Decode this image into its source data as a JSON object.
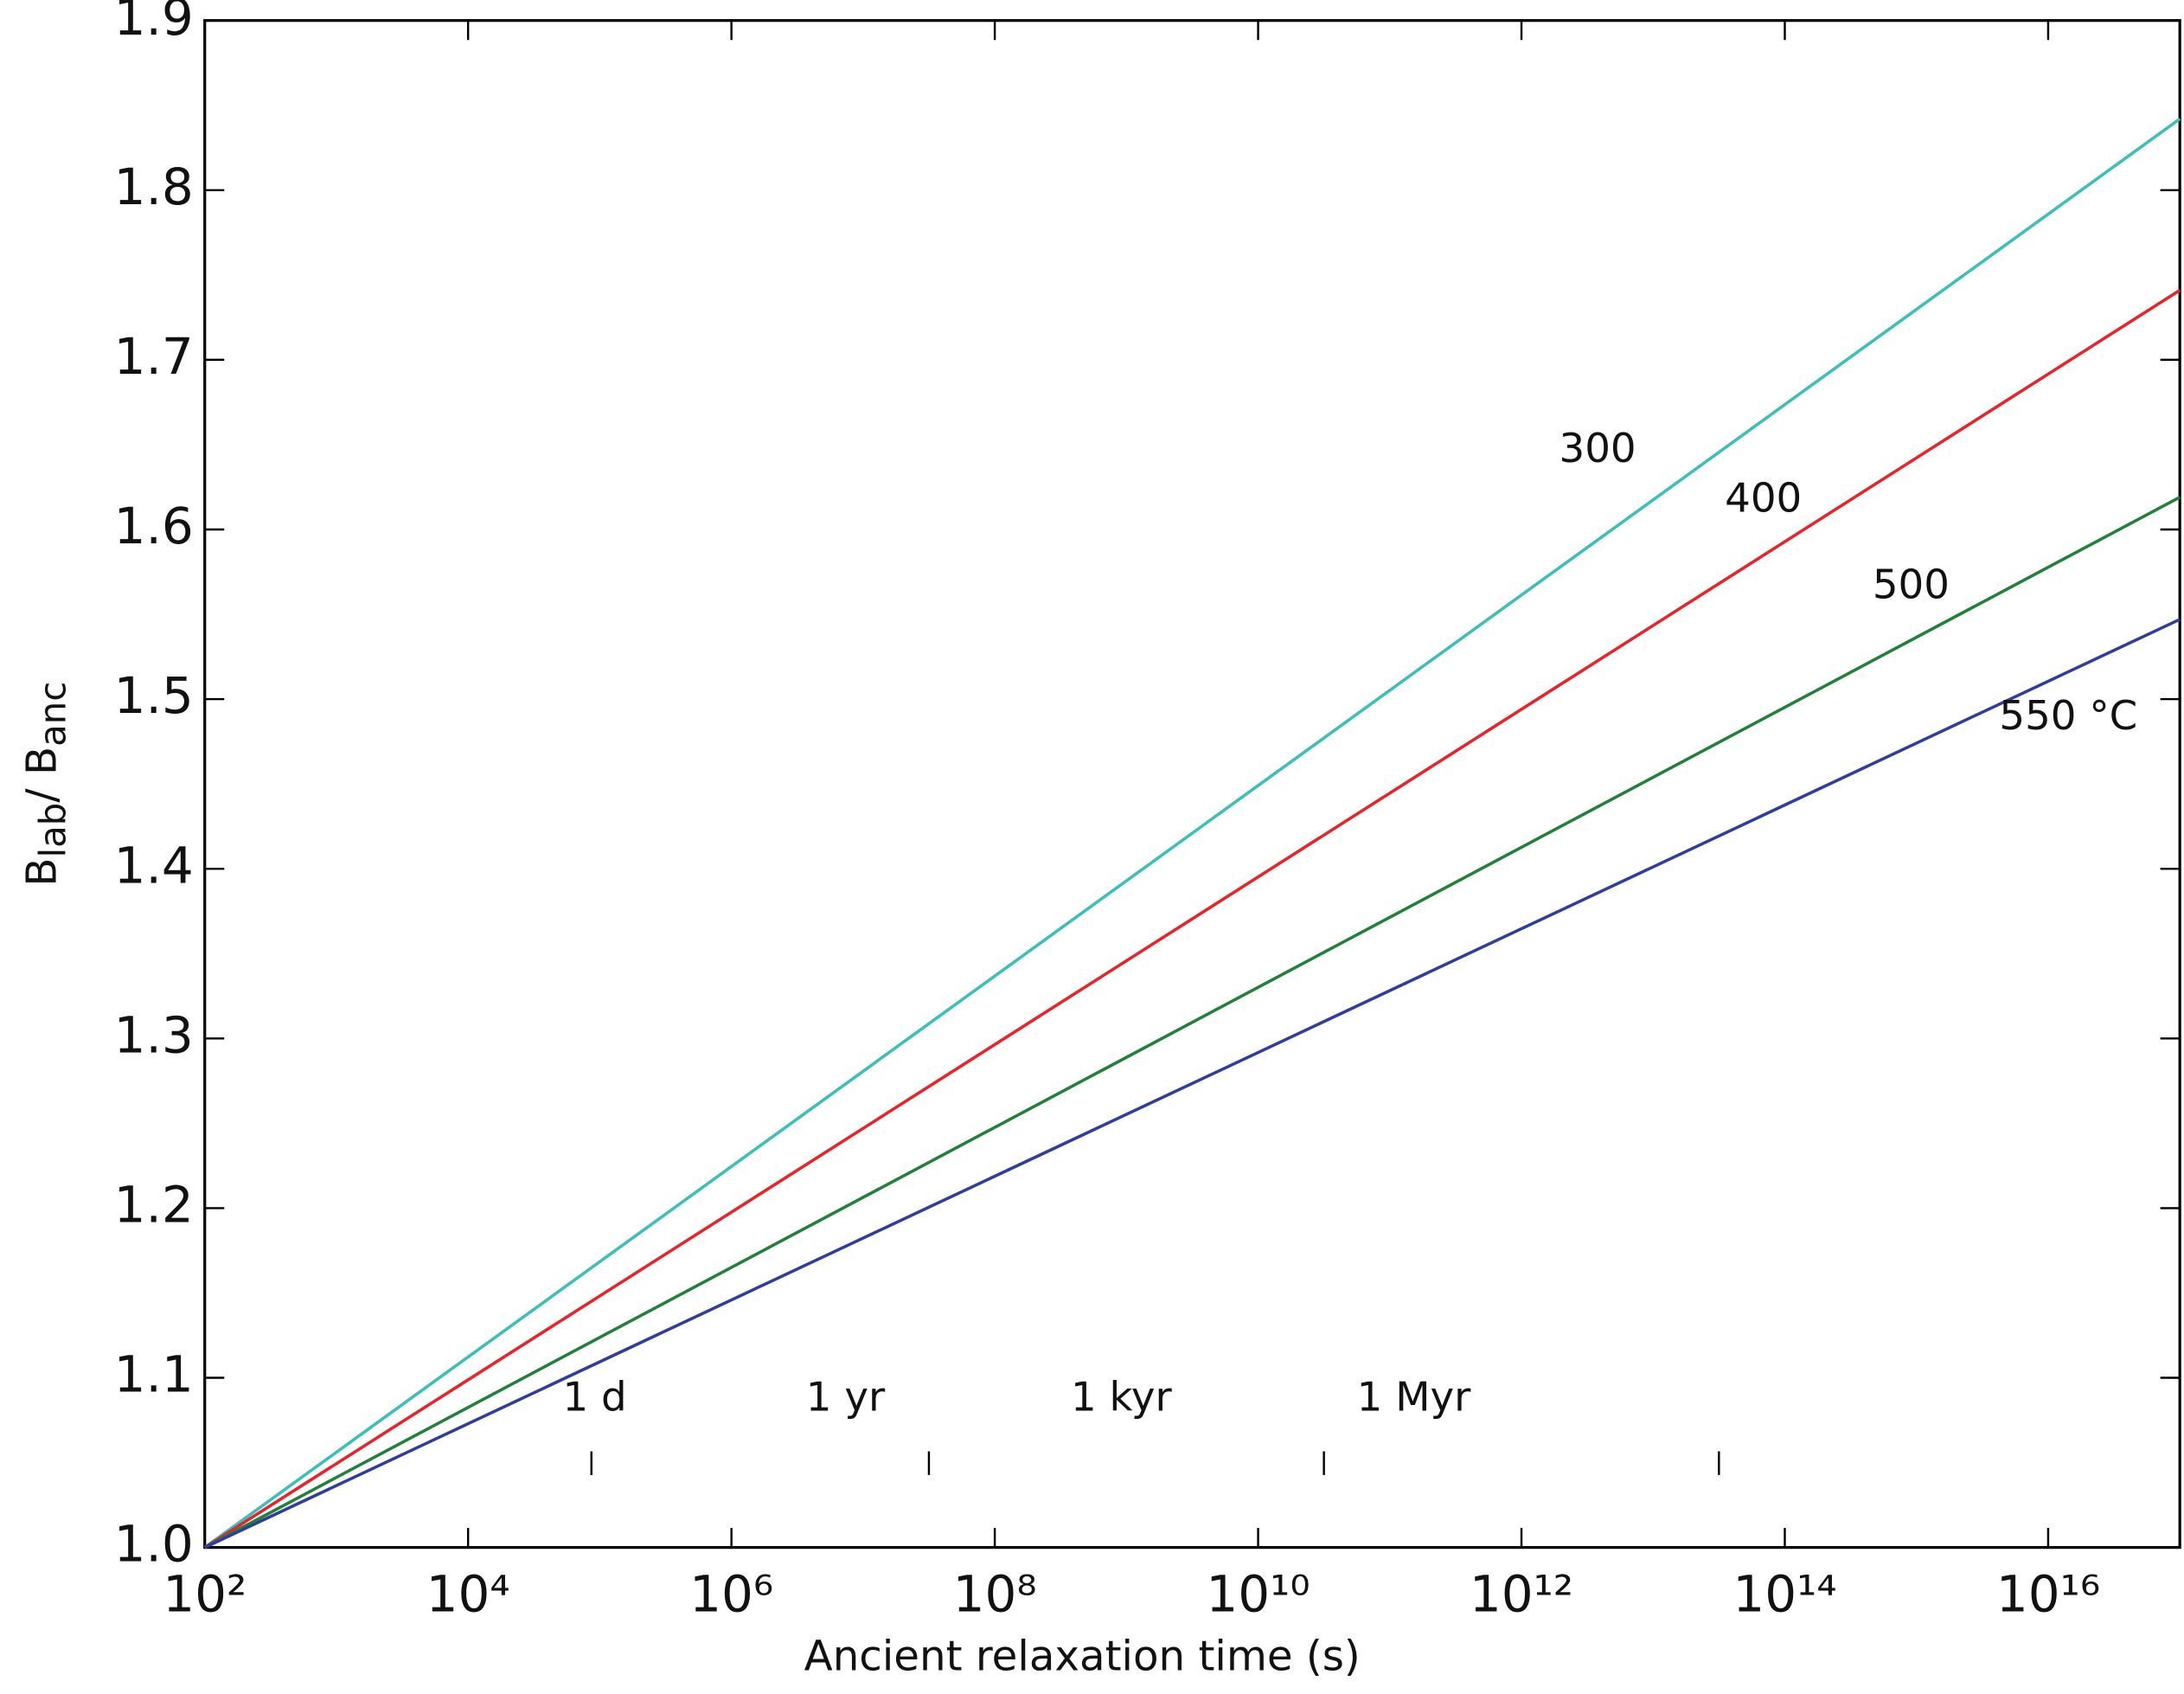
{
  "chart_data": {
    "type": "line",
    "xlabel": "Ancient relaxation time (s)",
    "ylabel": [
      "B",
      "lab",
      "/ B",
      "anc"
    ],
    "xscale": "log",
    "xlim": [
      100,
      1e+17
    ],
    "ylim": [
      1.0,
      1.9
    ],
    "xticks": [
      {
        "value": 100,
        "label": "10²"
      },
      {
        "value": 10000,
        "label": "10⁴"
      },
      {
        "value": 1000000,
        "label": "10⁶"
      },
      {
        "value": 100000000,
        "label": "10⁸"
      },
      {
        "value": 10000000000,
        "label": "10¹⁰"
      },
      {
        "value": 1000000000000,
        "label": "10¹²"
      },
      {
        "value": 100000000000000,
        "label": "10¹⁴"
      },
      {
        "value": 10000000000000000,
        "label": "10¹⁶"
      }
    ],
    "yticks": [
      {
        "value": 1,
        "label": "1.0"
      },
      1.1,
      1.2,
      1.3,
      1.4,
      1.5,
      1.6,
      1.7,
      1.8,
      1.9
    ],
    "x": [
      100,
      1e+17
    ],
    "series": [
      {
        "name": "300",
        "color": "#3bbfb8",
        "values": [
          1.0,
          1.842
        ]
      },
      {
        "name": "400",
        "color": "#e8242a",
        "values": [
          1.0,
          1.741
        ]
      },
      {
        "name": "500",
        "color": "#21803a",
        "values": [
          1.0,
          1.619
        ]
      },
      {
        "name": "550 °C",
        "color": "#2f3e9e",
        "values": [
          1.0,
          1.547
        ]
      }
    ],
    "time_markers": [
      {
        "label": "1 d",
        "value": 86400
      },
      {
        "label": "1 yr",
        "value": 31600000
      },
      {
        "label": "1 kyr",
        "value": 31600000000
      },
      {
        "label": "1 Myr",
        "value": 31600000000000
      }
    ]
  }
}
